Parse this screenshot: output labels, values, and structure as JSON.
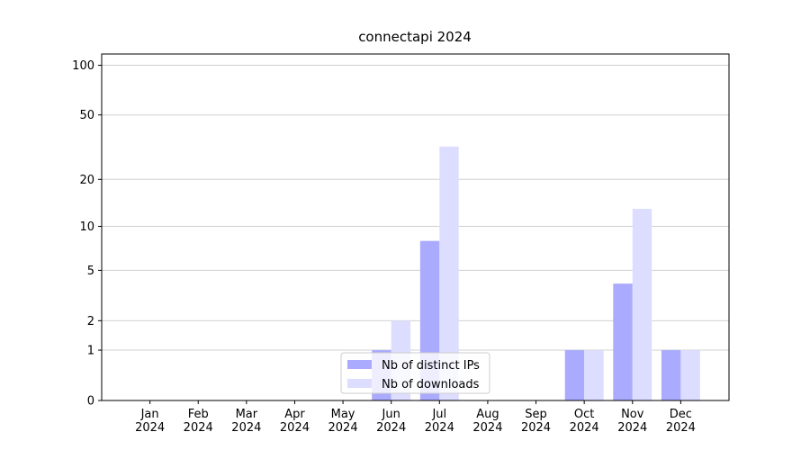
{
  "chart_data": {
    "type": "bar",
    "title": "connectapi 2024",
    "categories": [
      "Jan\n2024",
      "Feb\n2024",
      "Mar\n2024",
      "Apr\n2024",
      "May\n2024",
      "Jun\n2024",
      "Jul\n2024",
      "Aug\n2024",
      "Sep\n2024",
      "Oct\n2024",
      "Nov\n2024",
      "Dec\n2024"
    ],
    "series": [
      {
        "name": "Nb of distinct IPs",
        "color": "#aaaaff",
        "values": [
          0,
          0,
          0,
          0,
          0,
          1,
          8,
          0,
          0,
          1,
          4,
          1
        ]
      },
      {
        "name": "Nb of downloads",
        "color": "#ddddff",
        "values": [
          0,
          0,
          0,
          0,
          0,
          2,
          32,
          0,
          0,
          1,
          13,
          1
        ]
      }
    ],
    "yscale": "log1p",
    "ylim": [
      0,
      117
    ],
    "yticks": [
      0,
      1,
      2,
      5,
      10,
      20,
      50,
      100
    ],
    "grid": true,
    "legend": "lower center"
  }
}
